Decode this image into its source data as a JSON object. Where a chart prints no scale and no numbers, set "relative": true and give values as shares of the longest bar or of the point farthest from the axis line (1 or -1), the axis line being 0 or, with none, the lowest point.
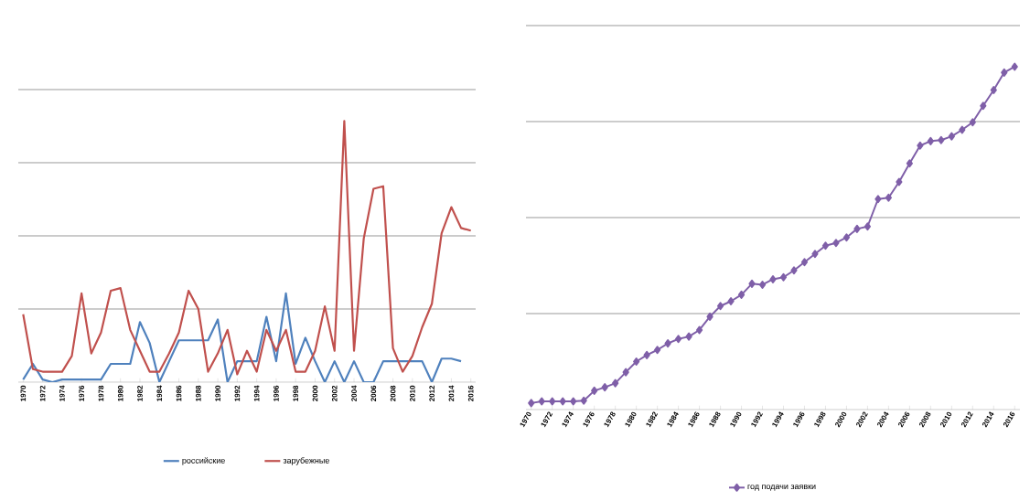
{
  "chart_data": [
    {
      "type": "line",
      "relative": true,
      "grid": "y",
      "legend": "bottom",
      "marker": "none",
      "categories": [
        "1970",
        null,
        "1972",
        null,
        "1974",
        null,
        "1976",
        null,
        "1978",
        null,
        "1980",
        null,
        "1982",
        null,
        "1984",
        null,
        "1986",
        null,
        "1988",
        null,
        "1990",
        null,
        "1992",
        null,
        "1994",
        null,
        "1996",
        null,
        "1998",
        null,
        "2000",
        null,
        "2002",
        null,
        "2004",
        null,
        "2006",
        null,
        "2008",
        null,
        "2010",
        null,
        "2012",
        null,
        "2014",
        null,
        "2016"
      ],
      "series": [
        {
          "name": "российские",
          "color": "#4f81bd",
          "values": [
            0.01,
            0.07,
            0.01,
            0.0,
            0.01,
            0.01,
            0.01,
            0.01,
            0.01,
            0.07,
            0.07,
            0.07,
            0.23,
            0.15,
            0.0,
            0.08,
            0.16,
            0.16,
            0.16,
            0.16,
            0.24,
            0.0,
            0.08,
            0.08,
            0.08,
            0.25,
            0.08,
            0.34,
            0.07,
            0.17,
            0.08,
            0.0,
            0.08,
            0.0,
            0.08,
            0.0,
            0.0,
            0.08,
            0.08,
            0.08,
            0.08,
            0.08,
            0.0,
            0.09,
            0.09,
            0.08,
            null
          ]
        },
        {
          "name": "зарубежные",
          "color": "#c0504d",
          "values": [
            0.26,
            0.05,
            0.04,
            0.04,
            0.04,
            0.1,
            0.34,
            0.11,
            0.19,
            0.35,
            0.36,
            0.2,
            0.12,
            0.04,
            0.04,
            0.11,
            0.19,
            0.35,
            0.28,
            0.04,
            0.11,
            0.2,
            0.03,
            0.12,
            0.04,
            0.2,
            0.12,
            0.2,
            0.04,
            0.04,
            0.12,
            0.29,
            0.12,
            1.0,
            0.12,
            0.55,
            0.74,
            0.75,
            0.13,
            0.04,
            0.1,
            0.21,
            0.3,
            0.57,
            0.67,
            0.59,
            0.58
          ]
        }
      ]
    },
    {
      "type": "line",
      "relative": true,
      "grid": "y",
      "legend": "bottom",
      "marker": "diamond",
      "categories": [
        "1970",
        null,
        "1972",
        null,
        "1974",
        null,
        "1976",
        null,
        "1978",
        null,
        "1980",
        null,
        "1982",
        null,
        "1984",
        null,
        "1986",
        null,
        "1988",
        null,
        "1990",
        null,
        "1992",
        null,
        "1994",
        null,
        "1996",
        null,
        "1998",
        null,
        "2000",
        null,
        "2002",
        null,
        "2004",
        null,
        "2006",
        null,
        "2008",
        null,
        "2010",
        null,
        "2012",
        null,
        "2014",
        null,
        "2016"
      ],
      "series": [
        {
          "name": "год подачи заявки",
          "color": "#7f5fa8",
          "values": [
            0.019,
            0.024,
            0.024,
            0.024,
            0.024,
            0.026,
            0.055,
            0.065,
            0.077,
            0.109,
            0.14,
            0.159,
            0.174,
            0.193,
            0.206,
            0.213,
            0.232,
            0.271,
            0.302,
            0.316,
            0.335,
            0.367,
            0.364,
            0.38,
            0.386,
            0.406,
            0.43,
            0.454,
            0.478,
            0.486,
            0.502,
            0.527,
            0.534,
            0.614,
            0.618,
            0.664,
            0.718,
            0.77,
            0.783,
            0.786,
            0.797,
            0.816,
            0.838,
            0.886,
            0.932,
            0.983,
            1.0
          ]
        }
      ]
    }
  ]
}
